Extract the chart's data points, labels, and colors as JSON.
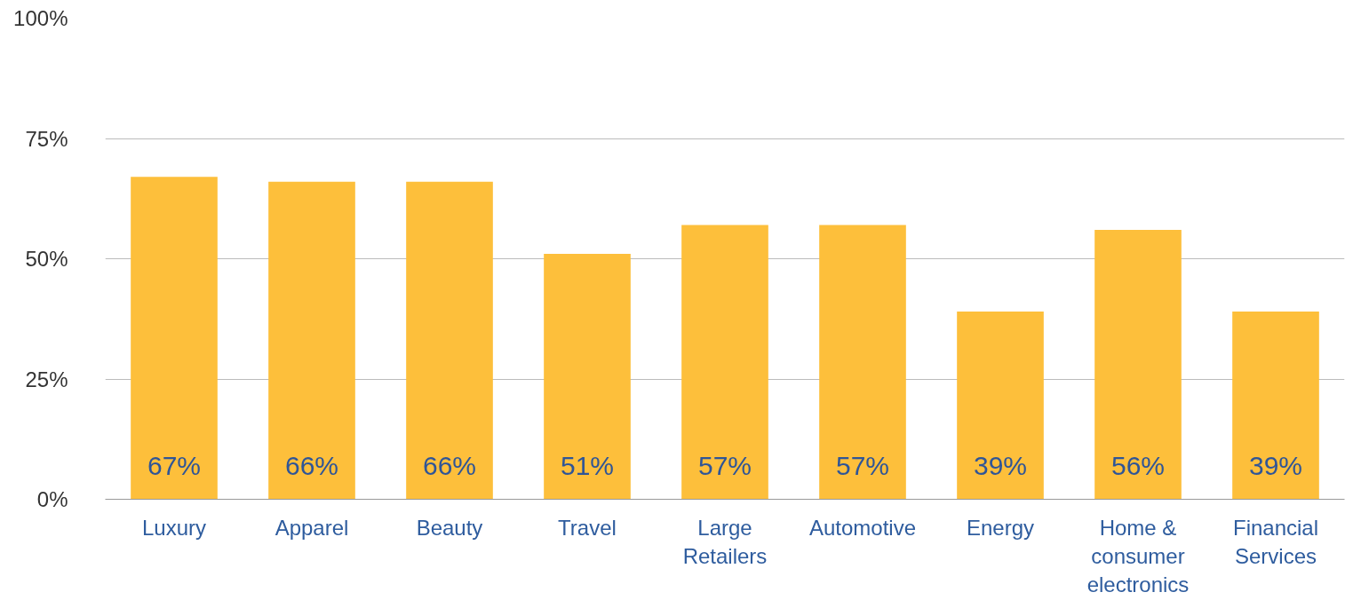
{
  "chart_data": {
    "type": "bar",
    "categories": [
      "Luxury",
      "Apparel",
      "Beauty",
      "Travel",
      "Large Retailers",
      "Automotive",
      "Energy",
      "Home & consumer electronics",
      "Financial Services"
    ],
    "values": [
      67,
      66,
      66,
      51,
      57,
      57,
      39,
      56,
      39
    ],
    "value_labels": [
      "67%",
      "66%",
      "66%",
      "51%",
      "57%",
      "57%",
      "39%",
      "56%",
      "39%"
    ],
    "color": "#fdbf3b",
    "ylim": [
      0,
      100
    ],
    "yticks": [
      {
        "value": 0,
        "label": "0%"
      },
      {
        "value": 25,
        "label": "25%"
      },
      {
        "value": 50,
        "label": "50%"
      },
      {
        "value": 75,
        "label": "75%"
      },
      {
        "value": 100,
        "label": "100%"
      }
    ],
    "grid": "y"
  }
}
